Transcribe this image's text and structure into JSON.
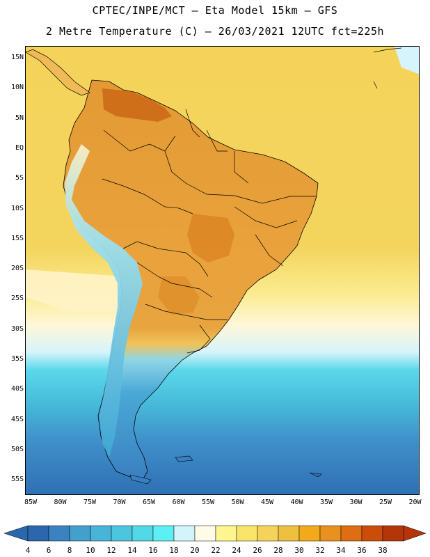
{
  "header": {
    "line1": "CPTEC/INPE/MCT –  Eta Model 15km – GFS",
    "line2": "2 Metre Temperature (C) – 26/03/2021 12UTC fct=225h"
  },
  "map": {
    "lat_labels": [
      "15N",
      "10N",
      "5N",
      "EQ",
      "5S",
      "10S",
      "15S",
      "20S",
      "25S",
      "30S",
      "35S",
      "40S",
      "45S",
      "50S",
      "55S"
    ],
    "lon_labels": [
      "85W",
      "80W",
      "75W",
      "70W",
      "65W",
      "60W",
      "55W",
      "50W",
      "45W",
      "40W",
      "35W",
      "30W",
      "25W",
      "20W"
    ],
    "colors": {
      "ocean_warm": "#f5d35a",
      "ocean_mid": "#fdf0a8",
      "ocean_cool": "#d6f4fb",
      "ocean_cold": "#3ccbe0",
      "ocean_deep": "#3f8fc9",
      "ocean_far": "#2f6fb3",
      "land_hot": "#e8a23a",
      "land_very_hot": "#cc6a16",
      "land_andes": "#5ac3e0",
      "land_patagonia": "#3a86c2",
      "border": "#000000"
    }
  },
  "legend": {
    "unit": "C",
    "ticks": [
      "4",
      "6",
      "8",
      "10",
      "12",
      "14",
      "16",
      "18",
      "20",
      "22",
      "24",
      "26",
      "28",
      "30",
      "32",
      "34",
      "36",
      "38"
    ],
    "colors": [
      "#2c67ae",
      "#3a82c0",
      "#43a0cd",
      "#48b4d8",
      "#4cc5df",
      "#52d9e7",
      "#5cf0f4",
      "#d3f4fb",
      "#fffbe6",
      "#fdf68f",
      "#f9e56a",
      "#f5d35a",
      "#edc040",
      "#f2a91a",
      "#e9901f",
      "#dd6e14",
      "#cc4d0a",
      "#b5350a"
    ]
  }
}
